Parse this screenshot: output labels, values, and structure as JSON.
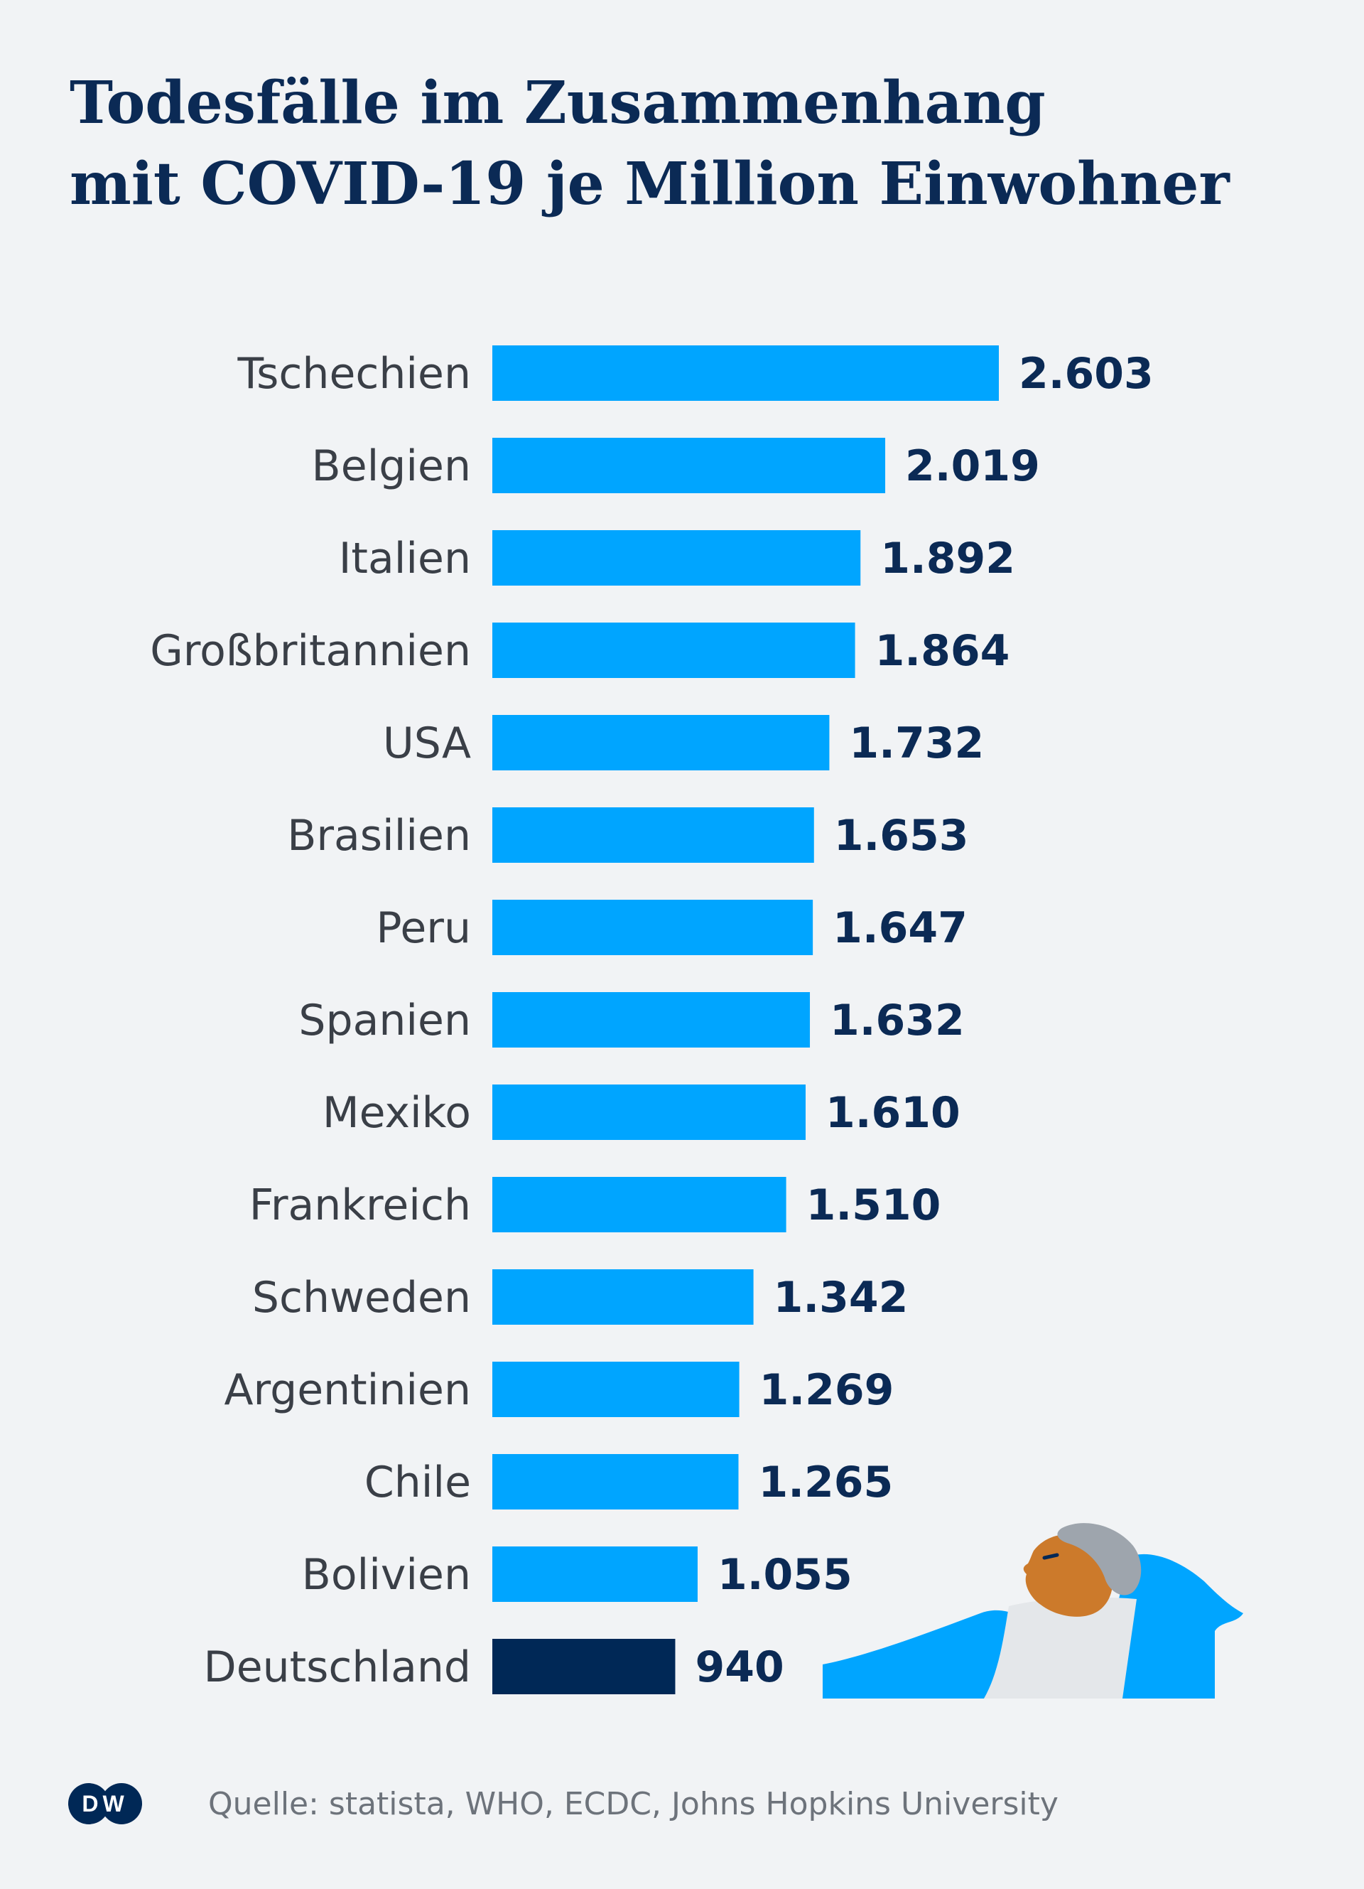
{
  "title_lines": [
    "Todesfälle im Zusammenhang",
    "mit COVID-19 je Million Einwohner"
  ],
  "source": "Quelle: statista, WHO, ECDC, Johns Hopkins University",
  "logo_text": "DW",
  "colors": {
    "bar": "#00a5ff",
    "highlight": "#002856",
    "background": "#f1f3f5",
    "title": "#0b2a55"
  },
  "chart_data": {
    "type": "bar",
    "orientation": "horizontal",
    "title": "Todesfälle im Zusammenhang mit COVID-19 je Million Einwohner",
    "categories": [
      "Tschechien",
      "Belgien",
      "Italien",
      "Großbritannien",
      "USA",
      "Brasilien",
      "Peru",
      "Spanien",
      "Mexiko",
      "Frankreich",
      "Schweden",
      "Argentinien",
      "Chile",
      "Bolivien",
      "Deutschland"
    ],
    "values": [
      2603,
      2019,
      1892,
      1864,
      1732,
      1653,
      1647,
      1632,
      1610,
      1510,
      1342,
      1269,
      1265,
      1055,
      940
    ],
    "value_labels": [
      "2.603",
      "2.019",
      "1.892",
      "1.864",
      "1.732",
      "1.653",
      "1.647",
      "1.632",
      "1.610",
      "1.510",
      "1.342",
      "1.269",
      "1.265",
      "1.055",
      "940"
    ],
    "highlight": "Deutschland",
    "xlim": [
      0,
      2603
    ],
    "grid": false,
    "legend": "none"
  }
}
